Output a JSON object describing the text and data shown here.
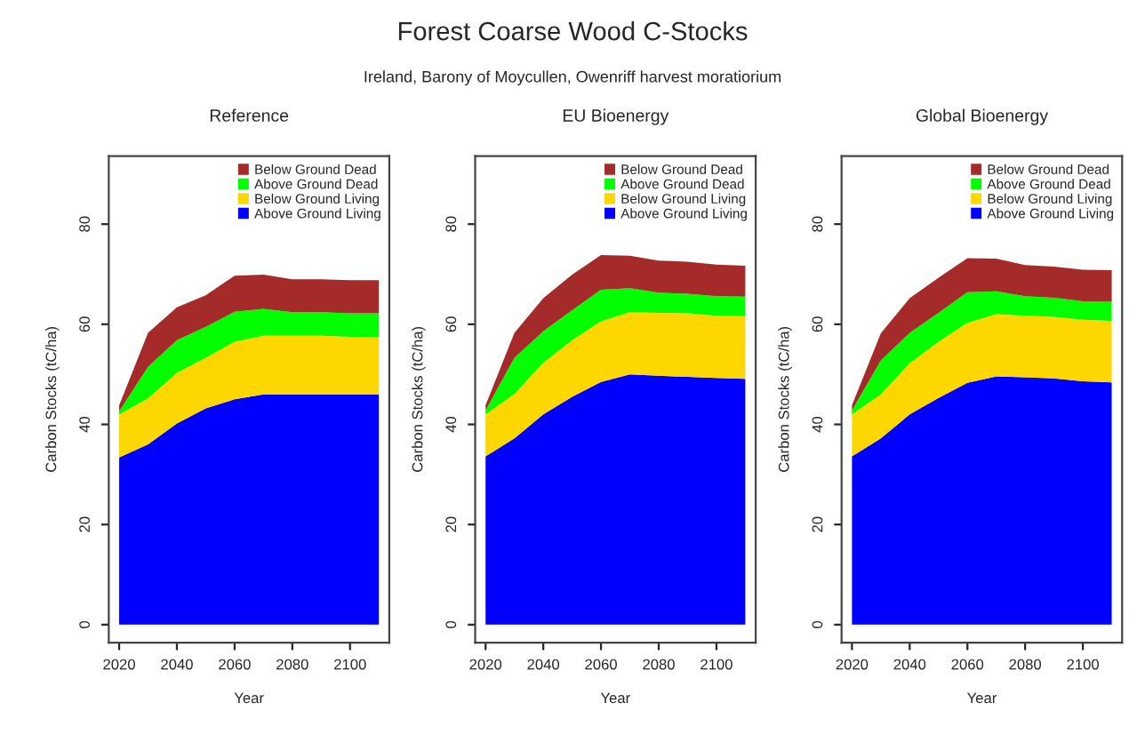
{
  "chart_data": [
    {
      "type": "area",
      "stacked": true,
      "title": "Reference",
      "xlabel": "Year",
      "ylabel": "Carbon Stocks (tC/ha)",
      "annotations": [
        "Forest Coarse Wood C-Stocks",
        "Ireland, Barony of Moycullen, Owenriff harvest moratiorium"
      ],
      "x": [
        2020,
        2030,
        2040,
        2050,
        2060,
        2070,
        2080,
        2090,
        2100,
        2110
      ],
      "series": [
        {
          "name": "Above Ground Living",
          "color": "#0000ff",
          "values": [
            33.4,
            36,
            40.2,
            43.2,
            45,
            46,
            46,
            46,
            46,
            46
          ]
        },
        {
          "name": "Below Ground Living",
          "color": "#ffd700",
          "values": [
            8.6,
            9.2,
            10.1,
            10.1,
            11.5,
            11.7,
            11.7,
            11.7,
            11.5,
            11.5
          ]
        },
        {
          "name": "Above Ground Dead",
          "color": "#00ff00",
          "values": [
            0.6,
            6.3,
            6.5,
            6.2,
            6.0,
            5.4,
            4.7,
            4.7,
            4.7,
            4.7
          ]
        },
        {
          "name": "Below Ground Dead",
          "color": "#a52a2a",
          "values": [
            1.2,
            6.8,
            6.6,
            6.3,
            7.2,
            6.8,
            6.6,
            6.6,
            6.6,
            6.6
          ]
        }
      ],
      "xlim": [
        2016.4,
        2113.6
      ],
      "xticks": [
        2020,
        2040,
        2060,
        2080,
        2100
      ],
      "ylim": [
        -3.6,
        93.6
      ],
      "yticks": [
        0,
        20,
        40,
        60,
        80
      ],
      "grid": false,
      "legend": "top right"
    },
    {
      "type": "area",
      "stacked": true,
      "title": "EU Bioenergy",
      "xlabel": "Year",
      "ylabel": "Carbon Stocks (tC/ha)",
      "x": [
        2020,
        2030,
        2040,
        2050,
        2060,
        2070,
        2080,
        2090,
        2100,
        2110
      ],
      "series": [
        {
          "name": "Above Ground Living",
          "color": "#0000ff",
          "values": [
            33.6,
            37.2,
            42,
            45.5,
            48.5,
            50,
            49.7,
            49.5,
            49.3,
            49.1
          ]
        },
        {
          "name": "Below Ground Living",
          "color": "#ffd700",
          "values": [
            8.4,
            8.9,
            10.3,
            11.3,
            12.1,
            12.4,
            12.6,
            12.7,
            12.4,
            12.5
          ]
        },
        {
          "name": "Above Ground Dead",
          "color": "#00ff00",
          "values": [
            0.8,
            7.2,
            6.3,
            6.0,
            6.3,
            4.8,
            4.0,
            3.9,
            3.9,
            3.9
          ]
        },
        {
          "name": "Below Ground Dead",
          "color": "#a52a2a",
          "values": [
            1.0,
            5.0,
            6.6,
            7.1,
            6.9,
            6.5,
            6.4,
            6.4,
            6.3,
            6.2
          ]
        }
      ],
      "xlim": [
        2016.4,
        2113.6
      ],
      "xticks": [
        2020,
        2040,
        2060,
        2080,
        2100
      ],
      "ylim": [
        -3.6,
        93.6
      ],
      "yticks": [
        0,
        20,
        40,
        60,
        80
      ],
      "grid": false,
      "legend": "top right"
    },
    {
      "type": "area",
      "stacked": true,
      "title": "Global Bioenergy",
      "xlabel": "Year",
      "ylabel": "Carbon Stocks (tC/ha)",
      "x": [
        2020,
        2030,
        2040,
        2050,
        2060,
        2070,
        2080,
        2090,
        2100,
        2110
      ],
      "series": [
        {
          "name": "Above Ground Living",
          "color": "#0000ff",
          "values": [
            33.6,
            37.2,
            42,
            45.3,
            48.3,
            49.6,
            49.4,
            49.2,
            48.6,
            48.4
          ]
        },
        {
          "name": "Below Ground Living",
          "color": "#ffd700",
          "values": [
            8.4,
            8.8,
            10.2,
            11.2,
            12.0,
            12.4,
            12.3,
            12.3,
            12.3,
            12.3
          ]
        },
        {
          "name": "Above Ground Dead",
          "color": "#00ff00",
          "values": [
            0.8,
            6.8,
            6.1,
            5.8,
            6.1,
            4.6,
            3.9,
            3.8,
            3.7,
            3.8
          ]
        },
        {
          "name": "Below Ground Dead",
          "color": "#a52a2a",
          "values": [
            1.0,
            5.4,
            6.9,
            7.0,
            6.8,
            6.5,
            6.2,
            6.2,
            6.3,
            6.3
          ]
        }
      ],
      "xlim": [
        2016.4,
        2113.6
      ],
      "xticks": [
        2020,
        2040,
        2060,
        2080,
        2100
      ],
      "ylim": [
        -3.6,
        93.6
      ],
      "yticks": [
        0,
        20,
        40,
        60,
        80
      ],
      "grid": false,
      "legend": "top right"
    }
  ]
}
